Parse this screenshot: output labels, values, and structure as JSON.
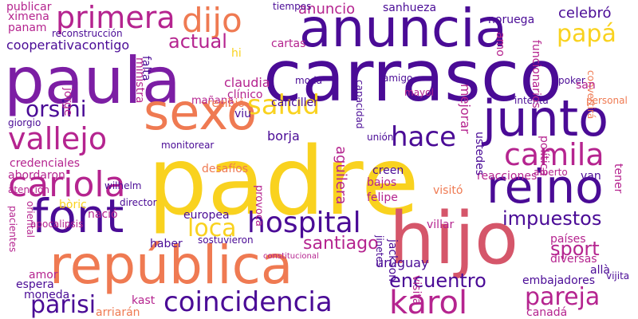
{
  "palette": {
    "yellow": "#f9d21f",
    "orange": "#ef7a52",
    "purple": "#7c1ea4",
    "indigo": "#4a0b96",
    "magenta": "#b5248f",
    "rose": "#d5566a"
  },
  "words": [
    "padre",
    "paula",
    "carrasco",
    "hijo",
    "anuncia",
    "república",
    "junto",
    "sexo",
    "font",
    "reino",
    "coincidencia",
    "karol",
    "hospital",
    "cariola",
    "primera",
    "dijo",
    "camila",
    "salud",
    "vallejo",
    "hace",
    "impuestos",
    "pareja",
    "parisi",
    "orsini",
    "loca",
    "papá",
    "encuentro",
    "santiago",
    "sport",
    "actual",
    "anuncio",
    "celebró",
    "uruguay",
    "borja",
    "aguilera",
    "europea",
    "mañana",
    "canciller",
    "credenciales",
    "publicar",
    "ximena",
    "panam",
    "cooperativacontigo",
    "reconstrucción",
    "cartas",
    "claudia",
    "clínico",
    "hi",
    "moda",
    "mayol",
    "amigo",
    "tiempos",
    "sanhueza",
    "noruega",
    "amo",
    "intenta",
    "personal",
    "unión",
    "desafíos",
    "visitó",
    "reacciones",
    "alberto",
    "van",
    "tener",
    "países",
    "diversas",
    "allà",
    "embajadores",
    "jackson",
    "vijita",
    "visita",
    "jinetes",
    "villar",
    "amor",
    "espera",
    "moneda",
    "kast",
    "arriarán",
    "haber",
    "sostuvieron",
    "constitucional",
    "felipe",
    "creen",
    "bajos",
    "atención",
    "bòric",
    "nació",
    "director",
    "wilhelm",
    "oriental",
    "pacientes",
    "provoca",
    "recibió",
    "monitorear",
    "jorge",
    "ministra",
    "falta",
    "funcionarios",
    "capacidad",
    "mejorar",
    "ustedes",
    "política",
    "poker",
    "convertirá",
    "san",
    "giorgio",
    "viu",
    "abordaron",
    "apocalipsis",
    "canadá"
  ]
}
